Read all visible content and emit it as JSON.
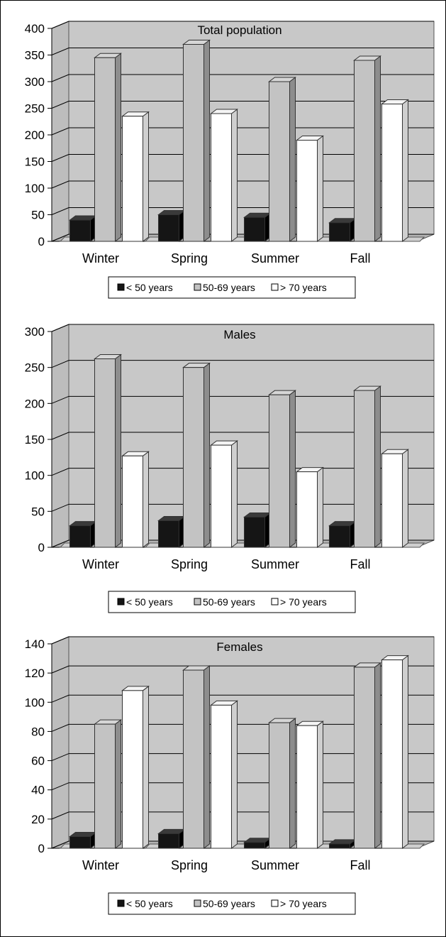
{
  "legend_entries": [
    "< 50 years",
    "50-69 years",
    "> 70 years"
  ],
  "colors": {
    "under_50": "#151515",
    "between_50_69": "#c3c3c3",
    "over_70": "#ffffff",
    "plot_back": "#c8c8c8",
    "floor": "#b4b4b4"
  },
  "chart_data": [
    {
      "type": "bar",
      "title": "Total population",
      "categories": [
        "Winter",
        "Spring",
        "Summer",
        "Fall"
      ],
      "ylim": [
        0,
        400
      ],
      "yticks": [
        "0",
        "50",
        "100",
        "150",
        "200",
        "250",
        "300",
        "350",
        "400"
      ],
      "grid": true,
      "legend_position": "bottom",
      "series": [
        {
          "name": "< 50 years",
          "values": [
            40,
            50,
            45,
            35
          ]
        },
        {
          "name": "50-69 years",
          "values": [
            345,
            370,
            300,
            340
          ]
        },
        {
          "name": "> 70 years",
          "values": [
            235,
            240,
            190,
            258
          ]
        }
      ]
    },
    {
      "type": "bar",
      "title": "Males",
      "categories": [
        "Winter",
        "Spring",
        "Summer",
        "Fall"
      ],
      "ylim": [
        0,
        300
      ],
      "yticks": [
        "0",
        "50",
        "100",
        "150",
        "200",
        "250",
        "300"
      ],
      "grid": true,
      "legend_position": "bottom",
      "series": [
        {
          "name": "< 50 years",
          "values": [
            30,
            37,
            42,
            30
          ]
        },
        {
          "name": "50-69 years",
          "values": [
            262,
            250,
            212,
            218
          ]
        },
        {
          "name": "> 70 years",
          "values": [
            127,
            142,
            105,
            130
          ]
        }
      ]
    },
    {
      "type": "bar",
      "title": "Females",
      "categories": [
        "Winter",
        "Spring",
        "Summer",
        "Fall"
      ],
      "ylim": [
        0,
        140
      ],
      "yticks": [
        "0",
        "20",
        "40",
        "60",
        "80",
        "100",
        "120",
        "140"
      ],
      "grid": true,
      "legend_position": "bottom",
      "series": [
        {
          "name": "< 50 years",
          "values": [
            8,
            10,
            4,
            3
          ]
        },
        {
          "name": "50-69 years",
          "values": [
            85,
            122,
            86,
            124
          ]
        },
        {
          "name": "> 70 years",
          "values": [
            108,
            98,
            84,
            129
          ]
        }
      ]
    }
  ]
}
